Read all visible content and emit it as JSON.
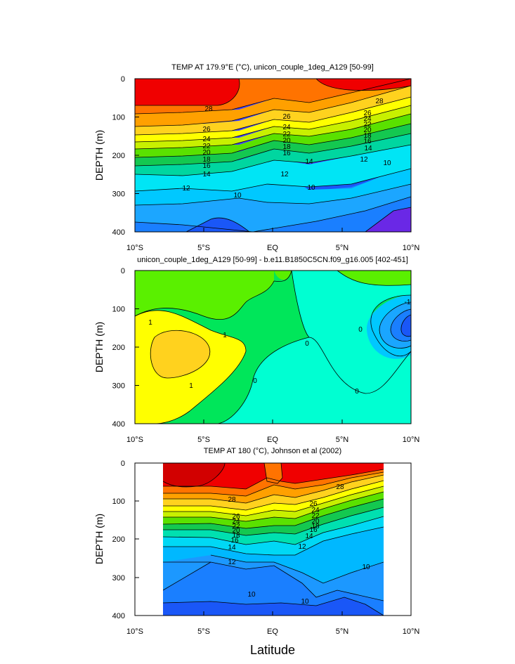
{
  "chart_data": [
    {
      "type": "contour",
      "title": "TEMP AT 179.9°E (°C), unicon_couple_1deg_A129 [50-99]",
      "ylabel": "DEPTH (m)",
      "xlabel": "",
      "xticks": [
        "10°S",
        "5°S",
        "EQ",
        "5°N",
        "10°N"
      ],
      "xlim": [
        -10,
        10
      ],
      "ylim": [
        0,
        400
      ],
      "yticks": [
        "0",
        "100",
        "200",
        "300",
        "400"
      ],
      "contour_levels": [
        10,
        12,
        14,
        16,
        18,
        20,
        22,
        24,
        26,
        28
      ],
      "contour_labels": [
        "28",
        "28",
        "26",
        "26",
        "26",
        "24",
        "24",
        "24",
        "22",
        "22",
        "22",
        "20",
        "20",
        "20",
        "18",
        "18",
        "18",
        "16",
        "16",
        "16",
        "14",
        "14",
        "14",
        "12",
        "12",
        "12",
        "10",
        "10",
        "10"
      ]
    },
    {
      "type": "contour",
      "title": "unicon_couple_1deg_A129 [50-99] - b.e11.B1850C5CN.f09_g16.005 [402-451]",
      "ylabel": "DEPTH (m)",
      "xlabel": "",
      "xticks": [
        "10°S",
        "5°S",
        "EQ",
        "5°N",
        "10°N"
      ],
      "xlim": [
        -10,
        10
      ],
      "ylim": [
        0,
        400
      ],
      "yticks": [
        "0",
        "100",
        "200",
        "300",
        "400"
      ],
      "contour_labels": [
        "1",
        "1",
        "1",
        "0",
        "0",
        "0",
        "0",
        "-1"
      ]
    },
    {
      "type": "contour",
      "title": "TEMP AT 180 (°C), Johnson et al (2002)",
      "ylabel": "DEPTH (m)",
      "xlabel": "Latitude",
      "xticks": [
        "10°S",
        "5°S",
        "EQ",
        "5°N",
        "10°N"
      ],
      "xlim": [
        -10,
        10
      ],
      "ylim": [
        0,
        400
      ],
      "yticks": [
        "0",
        "100",
        "200",
        "300",
        "400"
      ],
      "contour_labels": [
        "28",
        "28",
        "26",
        "26",
        "24",
        "24",
        "22",
        "22",
        "20",
        "20",
        "18",
        "18",
        "16",
        "16",
        "14",
        "14",
        "12",
        "12",
        "10",
        "10",
        "10"
      ]
    }
  ]
}
